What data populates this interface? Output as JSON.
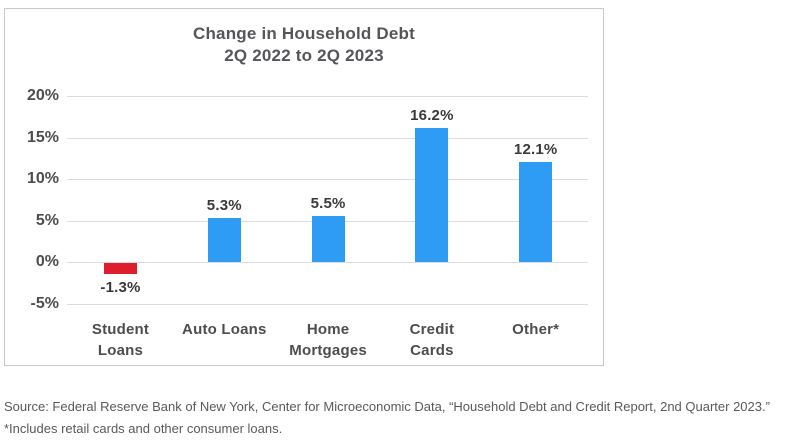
{
  "chart_data": {
    "type": "bar",
    "title": "Change in Household Debt",
    "subtitle": "2Q 2022 to 2Q 2023",
    "categories": [
      {
        "label": "Student Loans",
        "lines": [
          "Student",
          "Loans"
        ]
      },
      {
        "label": "Auto Loans",
        "lines": [
          "Auto Loans"
        ]
      },
      {
        "label": "Home Mortgages",
        "lines": [
          "Home",
          "Mortgages"
        ]
      },
      {
        "label": "Credit Cards",
        "lines": [
          "Credit",
          "Cards"
        ]
      },
      {
        "label": "Other*",
        "lines": [
          "Other*"
        ]
      }
    ],
    "values": [
      -1.3,
      5.3,
      5.5,
      16.2,
      12.1
    ],
    "value_labels": [
      "-1.3%",
      "5.3%",
      "5.5%",
      "16.2%",
      "12.1%"
    ],
    "xlabel": "",
    "ylabel": "",
    "ylim": [
      -5,
      20
    ],
    "yticks": [
      20,
      15,
      10,
      5,
      0,
      -5
    ],
    "ytick_suffix": "%",
    "grid": "horizontal",
    "legend_position": "none",
    "bar_color_positive": "#2E9BF5",
    "bar_color_negative": "#DE1E2D"
  },
  "source": {
    "line1": "Source: Federal Reserve Bank of New York, Center for Microeconomic Data, “Household Debt and Credit Report, 2nd Quarter 2023.”",
    "line2": "*Includes retail cards and other consumer loans."
  }
}
